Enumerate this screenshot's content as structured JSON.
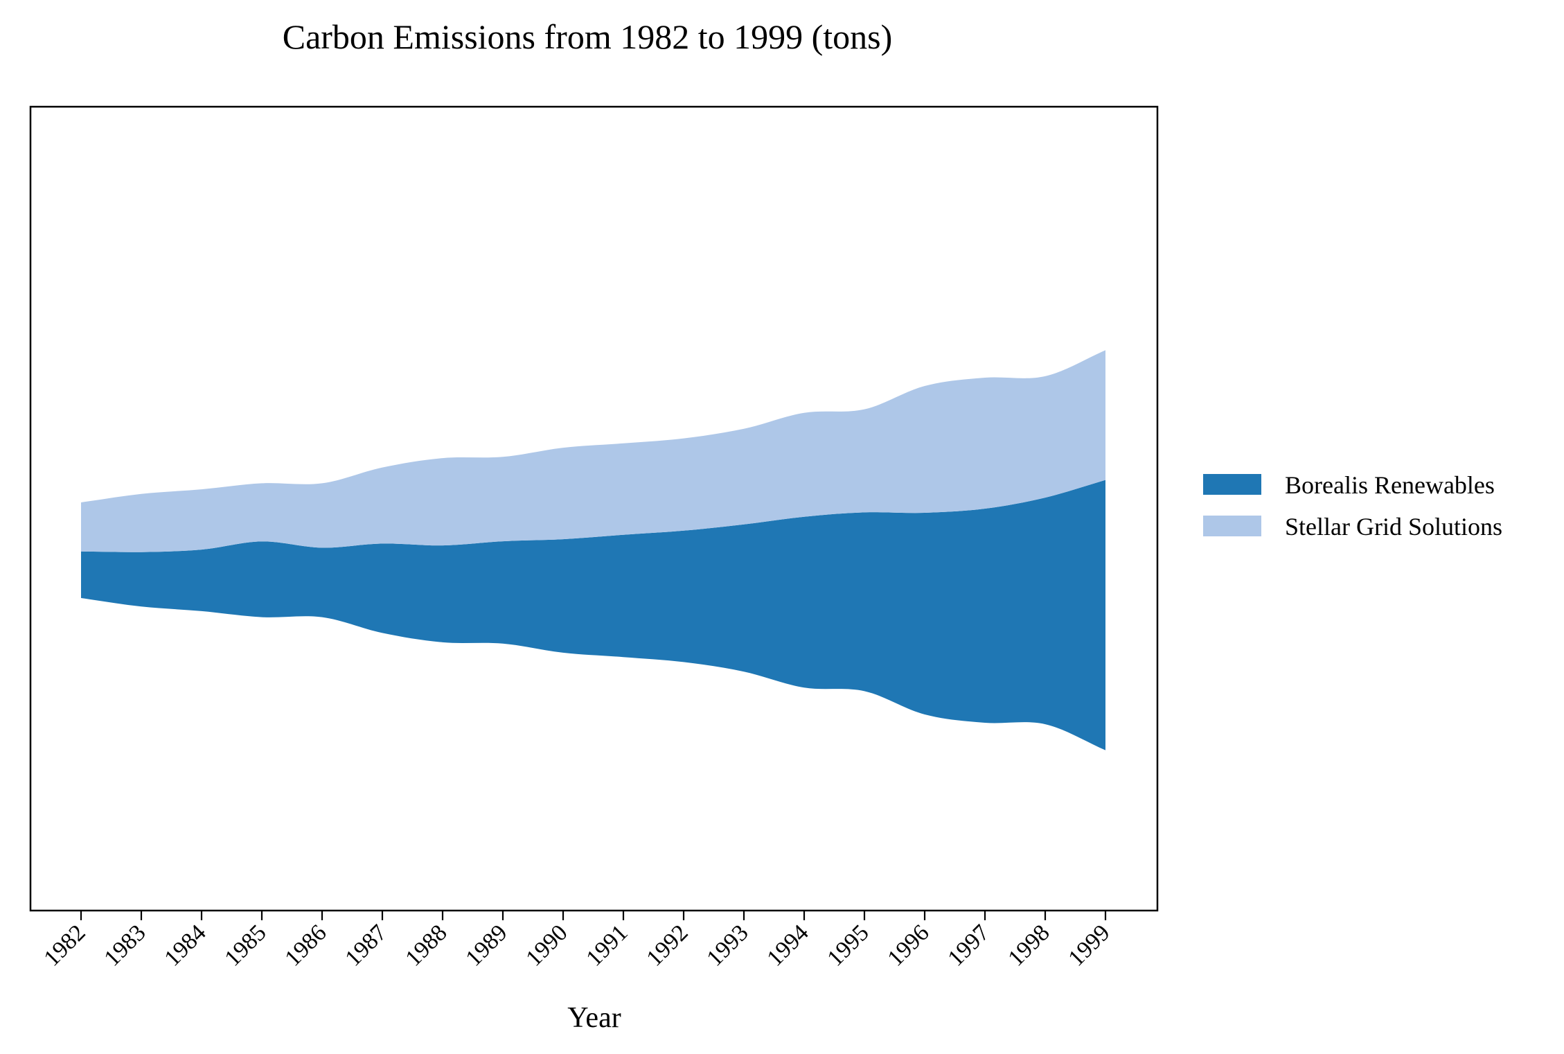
{
  "chart_data": {
    "type": "area",
    "subtype": "streamgraph",
    "title": "Carbon Emissions from 1982 to 1999 (tons)",
    "xlabel": "Year",
    "ylabel": "",
    "x": [
      "1982",
      "1983",
      "1984",
      "1985",
      "1986",
      "1987",
      "1988",
      "1989",
      "1990",
      "1991",
      "1992",
      "1993",
      "1994",
      "1995",
      "1996",
      "1997",
      "1998",
      "1999"
    ],
    "baseline": "symmetric",
    "y_axis_visible": false,
    "grid": false,
    "legend_position": "right",
    "series": [
      {
        "name": "Borealis Renewables",
        "color": "#1f77b4",
        "values": [
          112,
          131,
          148,
          182,
          167,
          215,
          233,
          246,
          273,
          294,
          316,
          354,
          411,
          430,
          485,
          515,
          545,
          650
        ]
      },
      {
        "name": "Stellar Grid Solutions",
        "color": "#aec7e8",
        "values": [
          118,
          140,
          145,
          140,
          155,
          183,
          210,
          203,
          220,
          220,
          222,
          230,
          250,
          248,
          305,
          315,
          292,
          312
        ]
      }
    ]
  }
}
